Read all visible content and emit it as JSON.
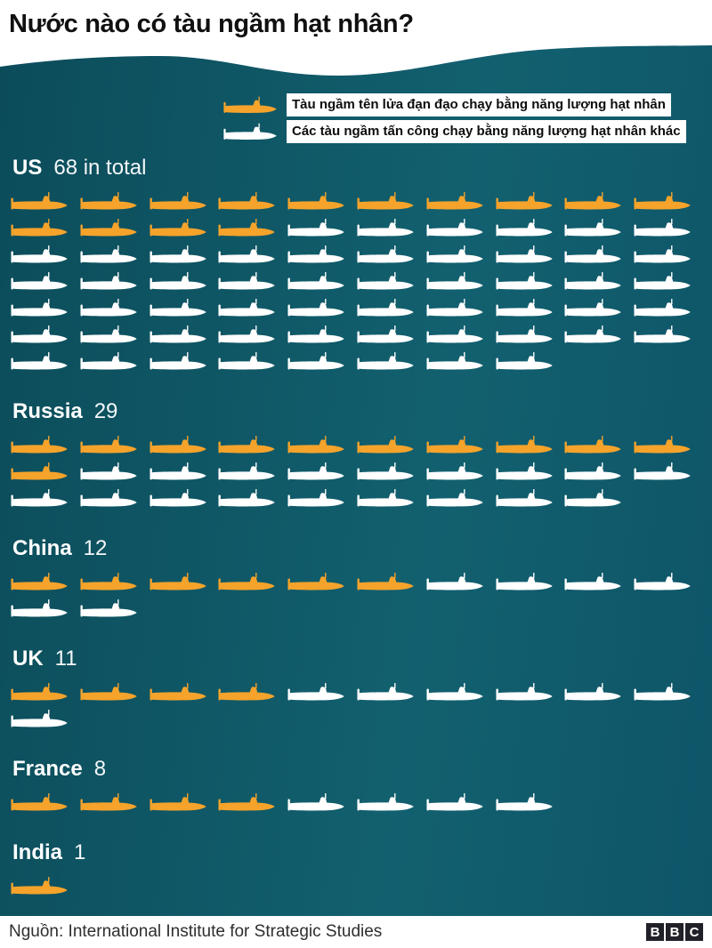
{
  "title": "Nước nào có tàu ngầm hạt nhân?",
  "colors": {
    "ballistic_orange": "#f5a32b",
    "attack_white": "#ffffff",
    "background_teal_dark": "#0c4c5a",
    "background_teal_light": "#12606f"
  },
  "legend": {
    "items": [
      {
        "label": "Tàu ngầm tên lửa đạn đạo chạy bằng năng lượng hạt nhân",
        "type": "ballistic",
        "color": "#f5a32b"
      },
      {
        "label": "Các tàu ngầm tấn công chạy bằng năng lượng hạt nhân khác",
        "type": "attack",
        "color": "#ffffff"
      }
    ]
  },
  "chart_data": {
    "type": "pictogram",
    "unit": "1 icon = 1 submarine",
    "icons_per_row": 10,
    "categories": [
      "US",
      "Russia",
      "China",
      "UK",
      "France",
      "India"
    ],
    "totals": [
      68,
      29,
      12,
      11,
      8,
      1
    ],
    "series": [
      {
        "name": "Tàu ngầm tên lửa đạn đạo chạy bằng năng lượng hạt nhân",
        "color": "#f5a32b",
        "values": [
          14,
          11,
          6,
          4,
          4,
          1
        ]
      },
      {
        "name": "Các tàu ngầm tấn công chạy bằng năng lượng hạt nhân khác",
        "color": "#ffffff",
        "values": [
          54,
          18,
          6,
          7,
          4,
          0
        ]
      }
    ],
    "countries": [
      {
        "name": "US",
        "count_label": "68 in total",
        "total": 68,
        "ballistic": 14,
        "attack": 54
      },
      {
        "name": "Russia",
        "count_label": "29",
        "total": 29,
        "ballistic": 11,
        "attack": 18
      },
      {
        "name": "China",
        "count_label": "12",
        "total": 12,
        "ballistic": 6,
        "attack": 6
      },
      {
        "name": "UK",
        "count_label": "11",
        "total": 11,
        "ballistic": 4,
        "attack": 7
      },
      {
        "name": "France",
        "count_label": "8",
        "total": 8,
        "ballistic": 4,
        "attack": 4
      },
      {
        "name": "India",
        "count_label": "1",
        "total": 1,
        "ballistic": 1,
        "attack": 0
      }
    ]
  },
  "footer": {
    "source": "Nguồn: International Institute for Strategic Studies",
    "bbc_letters": [
      "B",
      "B",
      "C"
    ]
  }
}
